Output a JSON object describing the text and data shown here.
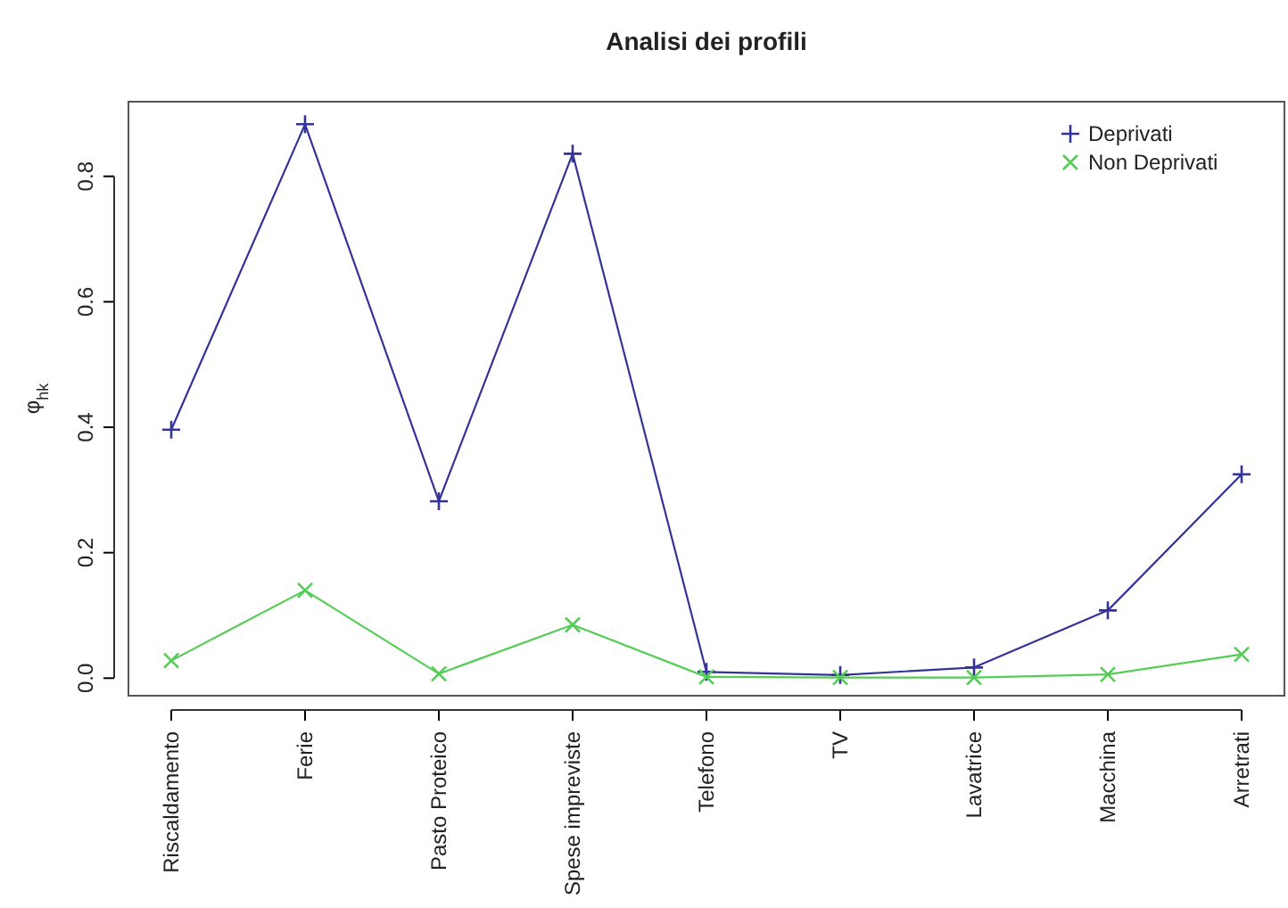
{
  "chart_data": {
    "type": "line",
    "title": "Analisi dei profili",
    "ylabel": "φ$_{hk}$",
    "categories": [
      "Riscaldamento",
      "Ferie",
      "Pasto Proteico",
      "Spese impreviste",
      "Telefono",
      "TV",
      "Lavatrice",
      "Macchina",
      "Arretrati"
    ],
    "series": [
      {
        "name": "Deprivati",
        "color": "#333399",
        "marker": "cross",
        "values": [
          0.396,
          0.883,
          0.282,
          0.836,
          0.01,
          0.005,
          0.017,
          0.108,
          0.325
        ]
      },
      {
        "name": "Non Deprivati",
        "color": "#55cc55",
        "marker": "x",
        "values": [
          0.028,
          0.14,
          0.007,
          0.085,
          0.002,
          0.001,
          0.001,
          0.006,
          0.038
        ]
      }
    ],
    "ylim": [
      -0.028,
      0.919
    ],
    "yticks": [
      {
        "value": 0,
        "label": "0.0"
      },
      {
        "value": 0.2,
        "label": "0.2"
      },
      {
        "value": 0.4,
        "label": "0.4"
      },
      {
        "value": 0.6,
        "label": "0.6"
      },
      {
        "value": 0.8,
        "label": "0.8"
      }
    ],
    "legend": "top right",
    "grid": false,
    "line_style": "solid"
  }
}
